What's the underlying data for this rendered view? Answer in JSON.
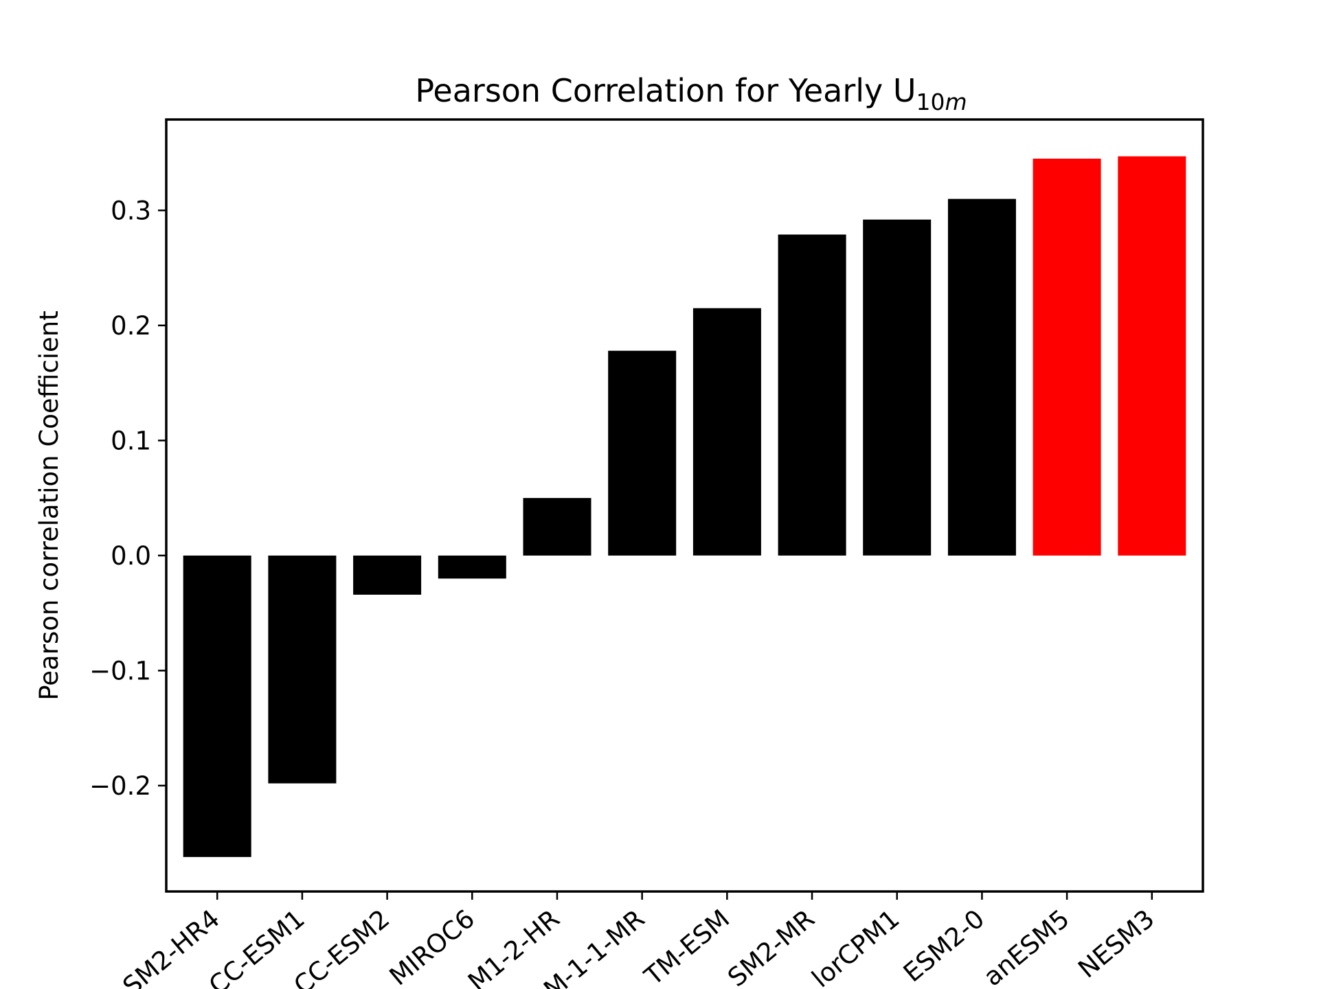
{
  "chart_data": {
    "type": "bar",
    "title": {
      "main": "Pearson Correlation for Yearly U",
      "subscript_digits": "10",
      "subscript_italic": "m"
    },
    "xlabel": "",
    "ylabel": "Pearson correlation Coefficient",
    "ylim": [
      -0.292,
      0.379
    ],
    "yticks": [
      -0.2,
      -0.1,
      0.0,
      0.1,
      0.2,
      0.3
    ],
    "ytick_labels": [
      "−0.2",
      "−0.1",
      "0.0",
      "0.1",
      "0.2",
      "0.3"
    ],
    "categories": [
      "SM2-HR4",
      "CC-ESM1",
      "CC-ESM2",
      "MIROC6",
      "M1-2-HR",
      "M-1-1-MR",
      "TM-ESM",
      "SM2-MR",
      "lorCPM1",
      "ESM2-0",
      "anESM5",
      "NESM3"
    ],
    "values": [
      -0.262,
      -0.198,
      -0.034,
      -0.02,
      0.05,
      0.178,
      0.215,
      0.279,
      0.292,
      0.31,
      0.345,
      0.347
    ],
    "colors": [
      "#000000",
      "#000000",
      "#000000",
      "#000000",
      "#000000",
      "#000000",
      "#000000",
      "#000000",
      "#000000",
      "#000000",
      "#ff0000",
      "#ff0000"
    ],
    "grid": false,
    "legend": "none"
  }
}
